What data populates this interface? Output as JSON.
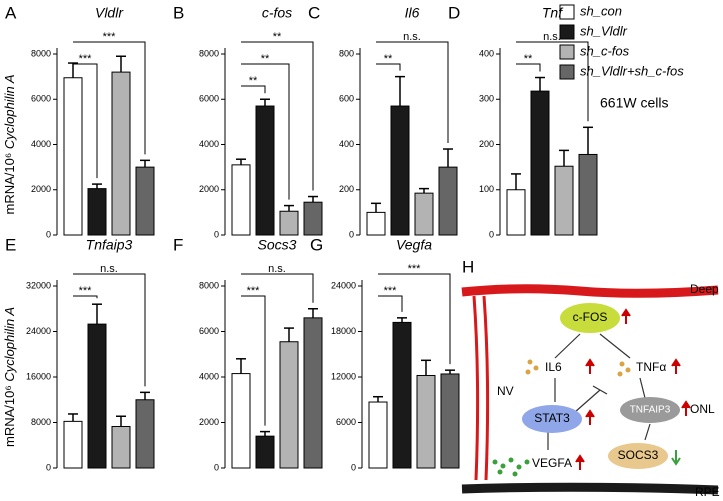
{
  "groups": [
    {
      "name": "sh_con",
      "color": "#ffffff"
    },
    {
      "name": "sh_Vldlr",
      "color": "#1a1a1a"
    },
    {
      "name": "sh_c-fos",
      "color": "#b3b3b3"
    },
    {
      "name": "sh_Vldlr+sh_c-fos",
      "color": "#666666"
    }
  ],
  "note": "661W cells",
  "chart_data": [
    {
      "type": "bar",
      "panel": "A",
      "title": "Vldlr",
      "ylabel": [
        "mRNA/10⁶ ",
        "Cyclophilin A"
      ],
      "values": [
        6950,
        2050,
        7200,
        3000
      ],
      "errors": [
        650,
        200,
        700,
        300
      ],
      "ylim": [
        0,
        8000
      ],
      "yticks": [
        0,
        2000,
        4000,
        6000,
        8000
      ],
      "significance": [
        {
          "label": "***",
          "to": 1
        },
        {
          "label": "***",
          "to": 3
        }
      ]
    },
    {
      "type": "bar",
      "panel": "B",
      "title": "c-fos",
      "values": [
        3100,
        5700,
        1050,
        1450
      ],
      "errors": [
        250,
        300,
        250,
        250
      ],
      "ylim": [
        0,
        8000
      ],
      "yticks": [
        0,
        2000,
        4000,
        6000,
        8000
      ],
      "significance": [
        {
          "label": "**",
          "to": 1
        },
        {
          "label": "**",
          "to": 2
        },
        {
          "label": "**",
          "to": 3
        }
      ]
    },
    {
      "type": "bar",
      "panel": "C",
      "title": "Il6",
      "values": [
        100,
        570,
        185,
        300
      ],
      "errors": [
        40,
        130,
        20,
        80
      ],
      "ylim": [
        0,
        800
      ],
      "yticks": [
        0,
        200,
        400,
        600,
        800
      ],
      "significance": [
        {
          "label": "**",
          "to": 1
        },
        {
          "label": "n.s.",
          "to": 3
        }
      ]
    },
    {
      "type": "bar",
      "panel": "D",
      "title": "Tnf",
      "values": [
        100,
        318,
        152,
        178
      ],
      "errors": [
        35,
        30,
        35,
        60
      ],
      "ylim": [
        0,
        400
      ],
      "yticks": [
        0,
        100,
        200,
        300,
        400
      ],
      "significance": [
        {
          "label": "**",
          "to": 1
        },
        {
          "label": "n.s.",
          "to": 3
        }
      ]
    },
    {
      "type": "bar",
      "panel": "E",
      "title": "Tnfaip3",
      "ylabel": [
        "mRNA/10⁶ ",
        "Cyclophilin A"
      ],
      "values": [
        8200,
        25300,
        7300,
        12000
      ],
      "errors": [
        1300,
        3500,
        1800,
        1300
      ],
      "ylim": [
        0,
        32000
      ],
      "yticks": [
        0,
        8000,
        16000,
        24000,
        32000
      ],
      "significance": [
        {
          "label": "***",
          "to": 1
        },
        {
          "label": "n.s.",
          "to": 3
        }
      ]
    },
    {
      "type": "bar",
      "panel": "F",
      "title": "Socs3",
      "values": [
        4150,
        1400,
        5550,
        6600
      ],
      "errors": [
        650,
        200,
        600,
        400
      ],
      "ylim": [
        0,
        8000
      ],
      "yticks": [
        0,
        2000,
        4000,
        6000,
        8000
      ],
      "significance": [
        {
          "label": "***",
          "to": 1
        },
        {
          "label": "n.s.",
          "to": 3
        }
      ]
    },
    {
      "type": "bar",
      "panel": "G",
      "title": "Vegfa",
      "values": [
        8700,
        19200,
        12200,
        12400
      ],
      "errors": [
        700,
        600,
        2000,
        500
      ],
      "ylim": [
        0,
        24000
      ],
      "yticks": [
        0,
        6000,
        12000,
        18000,
        24000
      ],
      "significance": [
        {
          "label": "***",
          "to": 1
        },
        {
          "label": "***",
          "to": 3
        }
      ]
    }
  ],
  "diagram": {
    "panel": "H",
    "deep": "Deep",
    "rpe": "RPE",
    "nv": "NV",
    "onl": "ONL",
    "cfos": "c-FOS",
    "il6": "IL6",
    "tnf": "TNFα",
    "stat3": "STAT3",
    "tnfaip3": "TNFAIP3",
    "socs3": "SOCS3",
    "vegfa": "VEGFA"
  }
}
